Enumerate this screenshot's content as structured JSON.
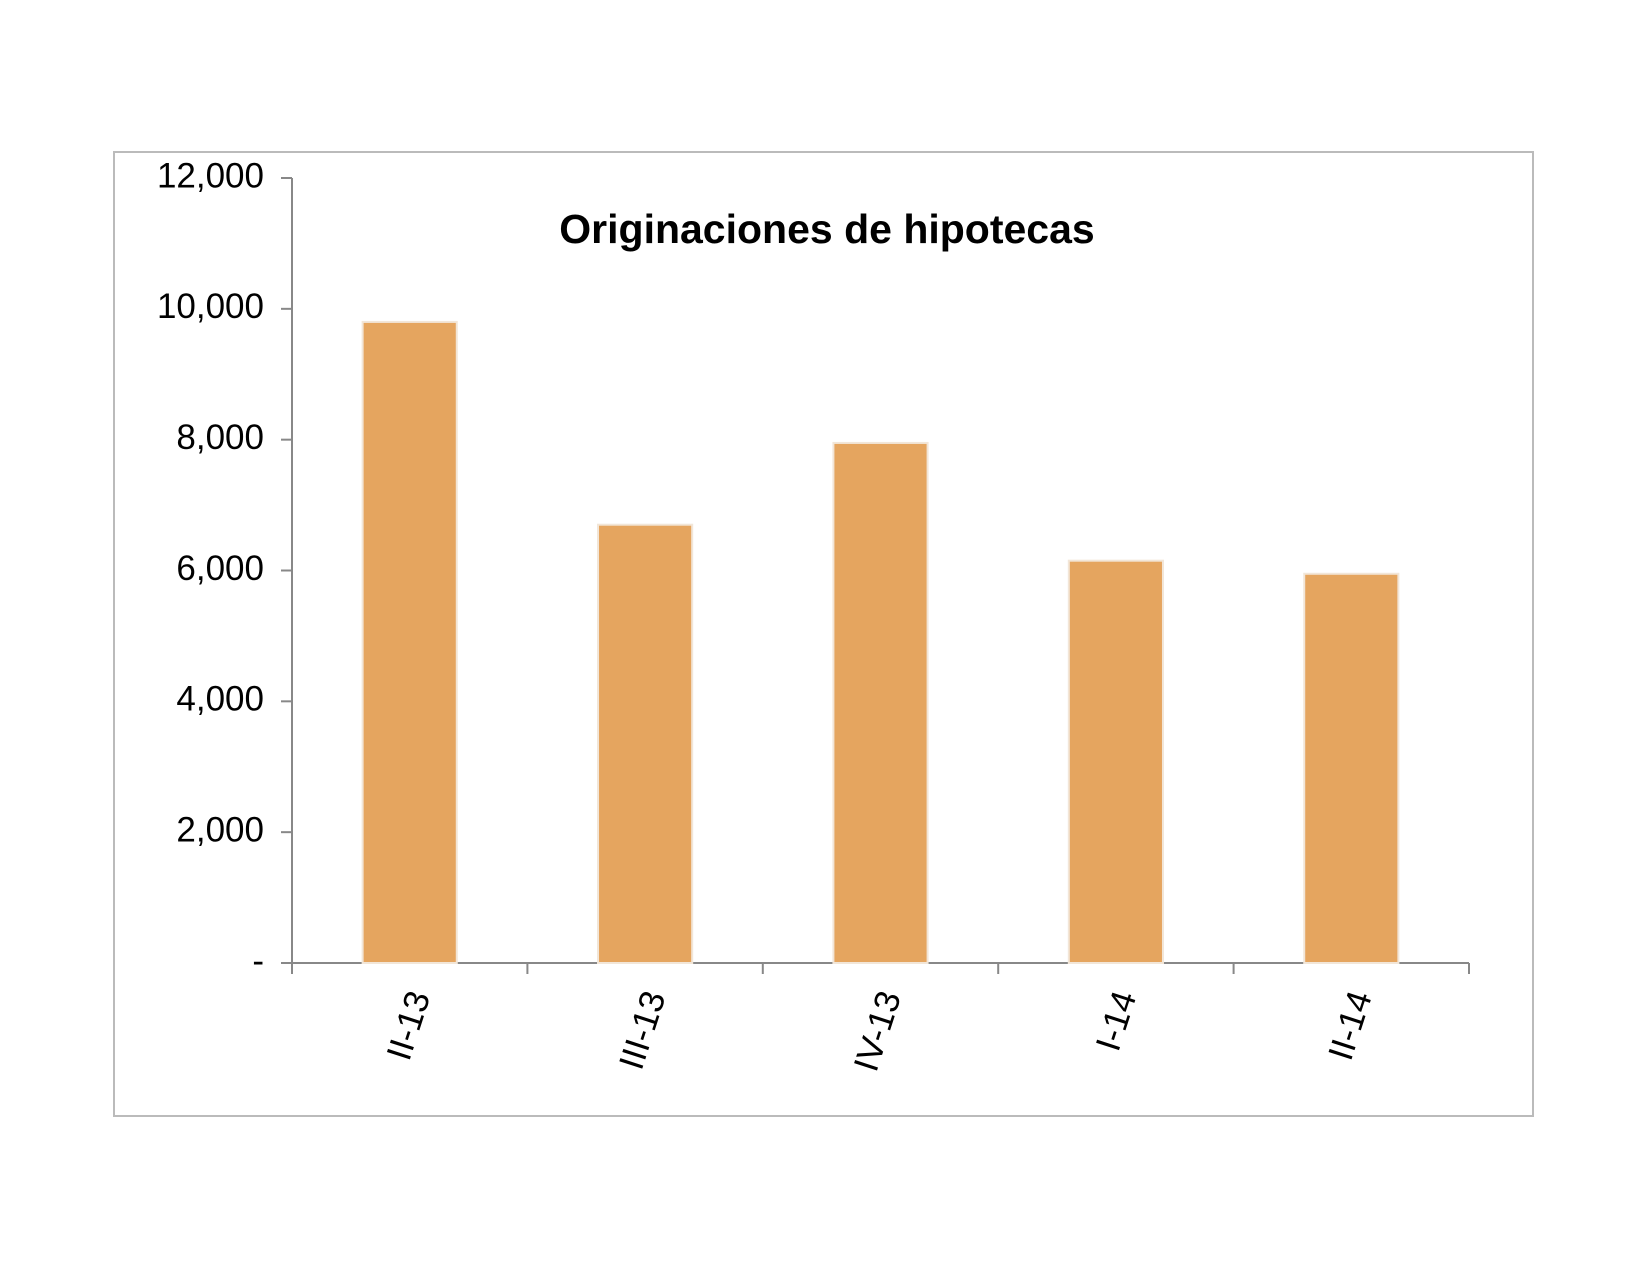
{
  "chart_data": {
    "type": "bar",
    "title": "Originaciones de hipotecas",
    "categories": [
      "II-13",
      "III-13",
      "IV-13",
      "I-14",
      "II-14"
    ],
    "values": [
      9800,
      6700,
      7950,
      6150,
      5950
    ],
    "color": "#e5a55f",
    "ylim": [
      0,
      12000
    ],
    "yticks": [
      {
        "value": 0,
        "label": "-"
      },
      {
        "value": 2000,
        "label": "2,000"
      },
      {
        "value": 4000,
        "label": "4,000"
      },
      {
        "value": 6000,
        "label": "6,000"
      },
      {
        "value": 8000,
        "label": "8,000"
      },
      {
        "value": 10000,
        "label": "10,000"
      },
      {
        "value": 12000,
        "label": "12,000"
      }
    ],
    "grid": false
  }
}
